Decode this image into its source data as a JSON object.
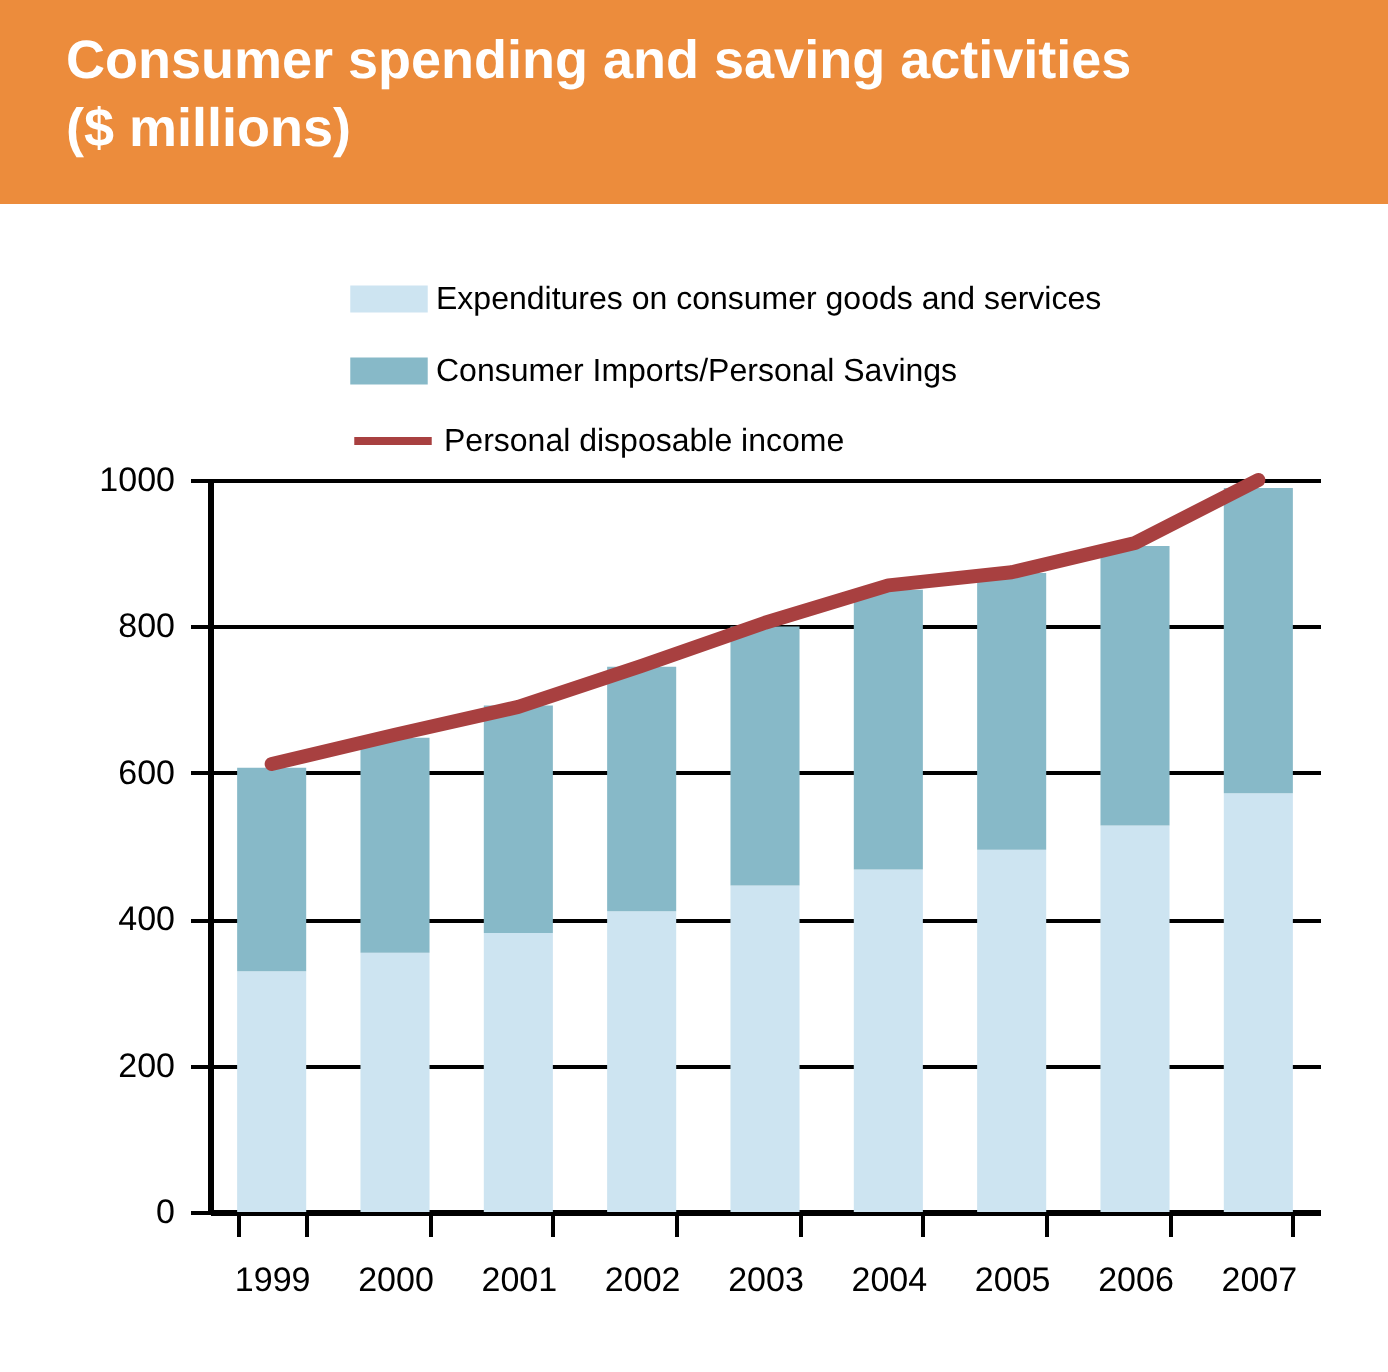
{
  "chart_data": {
    "type": "bar",
    "title": "Consumer spending and saving activities ($ millions)",
    "categories": [
      "1999",
      "2000",
      "2001",
      "2002",
      "2003",
      "2004",
      "2005",
      "2006",
      "2007"
    ],
    "stacked": true,
    "series": [
      {
        "name": "Expenditures on consumer goods and services",
        "color": "#cde4f1",
        "values": [
          329,
          354,
          381,
          411,
          446,
          468,
          495,
          528,
          572
        ]
      },
      {
        "name": "Consumer Imports/Personal Savings",
        "color": "#87b9c8",
        "values": [
          278,
          294,
          311,
          334,
          354,
          382,
          378,
          382,
          417
        ]
      },
      {
        "name": "Personal disposable income",
        "type": "line",
        "color": "#a84040",
        "values": [
          612,
          652,
          690,
          746,
          805,
          856,
          874,
          914,
          1000
        ]
      }
    ],
    "ylim": [
      0,
      1000
    ],
    "yticks": [
      0,
      200,
      400,
      600,
      800,
      1000
    ],
    "grid": "y",
    "legend": "top"
  }
}
